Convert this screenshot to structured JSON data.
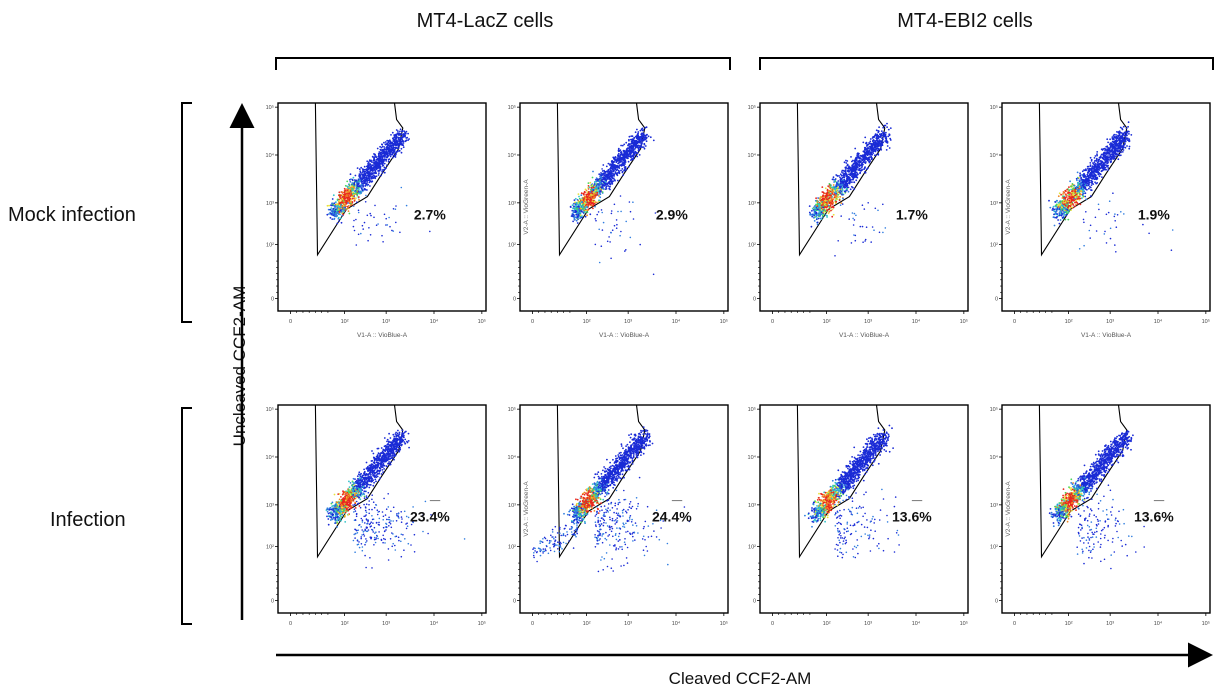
{
  "figure": {
    "group_titles": [
      "MT4-LacZ cells",
      "MT4-EBI2 cells"
    ],
    "row_labels": [
      "Mock infection",
      "Infection"
    ],
    "y_axis_label": "Uncleaved CCF2-AM",
    "x_axis_label": "Cleaved CCF2-AM",
    "panel_x_axis_label": "V1-A :: VioBlue-A",
    "panel_y_axis_label": "V2-A :: VioGreen-A",
    "tick_labels": [
      "0",
      "10²",
      "10³",
      "10⁴",
      "10⁵"
    ]
  },
  "chart_data": {
    "type": "scatter",
    "description_unit": "percent of cells in cleaved gate",
    "columns": [
      "MT4-LacZ cells",
      "MT4-LacZ cells",
      "MT4-EBI2 cells",
      "MT4-EBI2 cells"
    ],
    "rows": [
      "Mock infection",
      "Infection"
    ],
    "xscale": "biexponential",
    "yscale": "biexponential",
    "panels": [
      {
        "row": "Mock infection",
        "group": "MT4-LacZ cells",
        "gate_percent": "2.7%",
        "cleaved_fraction": 0.027
      },
      {
        "row": "Mock infection",
        "group": "MT4-LacZ cells",
        "gate_percent": "2.9%",
        "cleaved_fraction": 0.029
      },
      {
        "row": "Mock infection",
        "group": "MT4-EBI2 cells",
        "gate_percent": "1.7%",
        "cleaved_fraction": 0.017
      },
      {
        "row": "Mock infection",
        "group": "MT4-EBI2 cells",
        "gate_percent": "1.9%",
        "cleaved_fraction": 0.019
      },
      {
        "row": "Infection",
        "group": "MT4-LacZ cells",
        "gate_percent": "23.4%",
        "cleaved_fraction": 0.234
      },
      {
        "row": "Infection",
        "group": "MT4-LacZ cells",
        "gate_percent": "24.4%",
        "cleaved_fraction": 0.244
      },
      {
        "row": "Infection",
        "group": "MT4-EBI2 cells",
        "gate_percent": "13.6%",
        "cleaved_fraction": 0.136
      },
      {
        "row": "Infection",
        "group": "MT4-EBI2 cells",
        "gate_percent": "13.6%",
        "cleaved_fraction": 0.136
      }
    ],
    "density_colors": [
      "#1a2bd6",
      "#2f7de0",
      "#33c4c9",
      "#49d65a",
      "#e8e23a",
      "#f08a22",
      "#e8281e"
    ]
  }
}
